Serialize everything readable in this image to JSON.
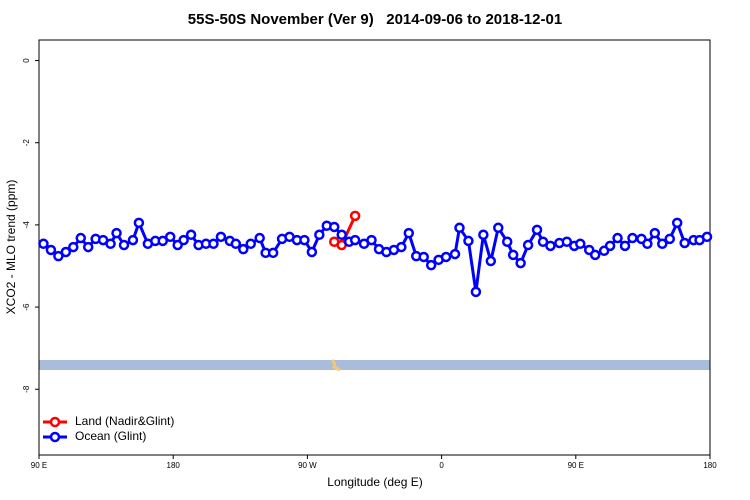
{
  "chart_data": {
    "type": "line",
    "title": "55S-50S November (Ver 9)   2014-09-06 to 2018-12-01",
    "xlabel": "Longitude (deg E)",
    "ylabel": "XCO2 - MLO trend (ppm)",
    "xlim": [
      90,
      540
    ],
    "xticks": [
      {
        "value": 90,
        "label": "90 E"
      },
      180,
      {
        "value": 270,
        "label": "90 W"
      },
      {
        "value": 360,
        "label": "0"
      },
      {
        "value": 450,
        "label": "90 E"
      },
      {
        "value": 540,
        "label": "180"
      }
    ],
    "ylim": [
      -9.6,
      0.5
    ],
    "yticks": [
      0,
      -2,
      -4,
      -6,
      -8
    ],
    "legend": "bottom-left",
    "series": [
      {
        "name": "Land (Nadir&Glint)",
        "color": "#ff0000",
        "x": [
          288,
          293,
          302
        ],
        "values": [
          -4.41,
          -4.49,
          -3.78
        ]
      },
      {
        "name": "Ocean (Glint)",
        "color": "#0000ff",
        "x": [
          93,
          98,
          103,
          108,
          113,
          118,
          123,
          128,
          133,
          138,
          142,
          147,
          153,
          157,
          163,
          168,
          173,
          178,
          183,
          187,
          192,
          197,
          202,
          207,
          212,
          218,
          222,
          227,
          232,
          238,
          242,
          247,
          253,
          258,
          263,
          268,
          273,
          278,
          283,
          288,
          293,
          298,
          302,
          308,
          313,
          318,
          323,
          328,
          333,
          338,
          343,
          348,
          353,
          358,
          363,
          369,
          372,
          378,
          383,
          388,
          393,
          398,
          404,
          408,
          413,
          418,
          424,
          428,
          433,
          439,
          444,
          449,
          453,
          459,
          463,
          469,
          473,
          478,
          483,
          488,
          494,
          498,
          503,
          508,
          513,
          518,
          523,
          529,
          533,
          538
        ],
        "values": [
          -4.46,
          -4.61,
          -4.76,
          -4.66,
          -4.54,
          -4.32,
          -4.54,
          -4.34,
          -4.37,
          -4.46,
          -4.2,
          -4.49,
          -4.37,
          -3.95,
          -4.46,
          -4.39,
          -4.39,
          -4.29,
          -4.49,
          -4.37,
          -4.24,
          -4.49,
          -4.46,
          -4.46,
          -4.29,
          -4.39,
          -4.46,
          -4.59,
          -4.46,
          -4.32,
          -4.68,
          -4.68,
          -4.34,
          -4.29,
          -4.37,
          -4.37,
          -4.66,
          -4.24,
          -4.02,
          -4.05,
          -4.24,
          -4.41,
          -4.37,
          -4.46,
          -4.37,
          -4.59,
          -4.66,
          -4.61,
          -4.54,
          -4.2,
          -4.76,
          -4.78,
          -4.98,
          -4.85,
          -4.78,
          -4.71,
          -4.07,
          -4.39,
          -5.63,
          -4.24,
          -4.88,
          -4.07,
          -4.41,
          -4.73,
          -4.93,
          -4.49,
          -4.12,
          -4.41,
          -4.51,
          -4.44,
          -4.41,
          -4.51,
          -4.46,
          -4.61,
          -4.73,
          -4.63,
          -4.51,
          -4.32,
          -4.51,
          -4.32,
          -4.34,
          -4.46,
          -4.2,
          -4.46,
          -4.34,
          -3.95,
          -4.44,
          -4.37,
          -4.37,
          -4.29
        ]
      }
    ]
  }
}
